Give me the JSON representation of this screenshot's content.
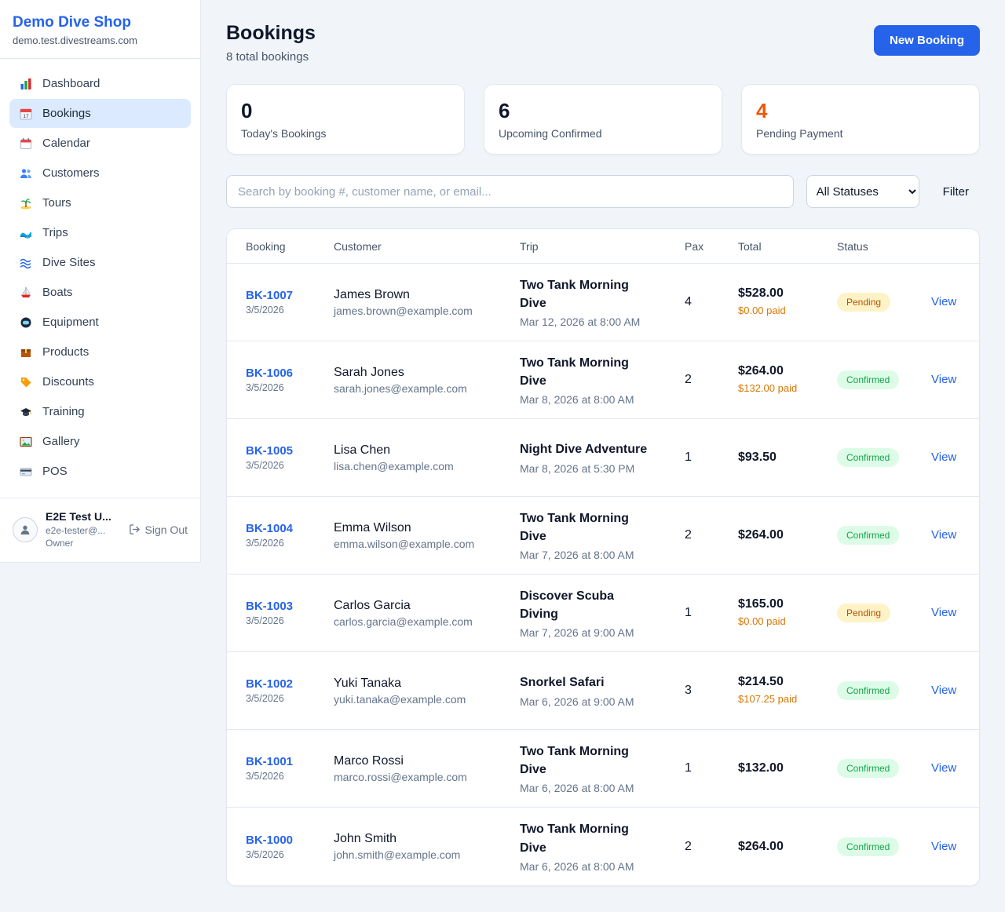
{
  "sidebar": {
    "shop_name": "Demo Dive Shop",
    "shop_domain": "demo.test.divestreams.com",
    "nav": [
      {
        "icon": "dashboard-icon",
        "label": "Dashboard",
        "active": false
      },
      {
        "icon": "bookings-icon",
        "label": "Bookings",
        "active": true
      },
      {
        "icon": "calendar-icon",
        "label": "Calendar",
        "active": false
      },
      {
        "icon": "customers-icon",
        "label": "Customers",
        "active": false
      },
      {
        "icon": "tours-icon",
        "label": "Tours",
        "active": false
      },
      {
        "icon": "trips-icon",
        "label": "Trips",
        "active": false
      },
      {
        "icon": "dive-sites-icon",
        "label": "Dive Sites",
        "active": false
      },
      {
        "icon": "boats-icon",
        "label": "Boats",
        "active": false
      },
      {
        "icon": "equipment-icon",
        "label": "Equipment",
        "active": false
      },
      {
        "icon": "products-icon",
        "label": "Products",
        "active": false
      },
      {
        "icon": "discounts-icon",
        "label": "Discounts",
        "active": false
      },
      {
        "icon": "training-icon",
        "label": "Training",
        "active": false
      },
      {
        "icon": "gallery-icon",
        "label": "Gallery",
        "active": false
      },
      {
        "icon": "pos-icon",
        "label": "POS",
        "active": false
      }
    ],
    "user": {
      "name": "E2E Test U...",
      "email": "e2e-tester@...",
      "role": "Owner",
      "sign_out_label": "Sign Out"
    }
  },
  "header": {
    "title": "Bookings",
    "subtitle": "8 total bookings",
    "new_booking_label": "New Booking"
  },
  "stats": [
    {
      "value": "0",
      "label": "Today's Bookings",
      "value_color": "#0f172a"
    },
    {
      "value": "6",
      "label": "Upcoming Confirmed",
      "value_color": "#0f172a"
    },
    {
      "value": "4",
      "label": "Pending Payment",
      "value_color": "#ea580c"
    }
  ],
  "filters": {
    "search_placeholder": "Search by booking #, customer name, or email...",
    "status_selected": "All Statuses",
    "filter_label": "Filter"
  },
  "accent_colors": {
    "primary_blue": "#2563eb",
    "pending_orange": "#ea580c",
    "confirmed_green": "#16a34a"
  },
  "table": {
    "columns": [
      "Booking",
      "Customer",
      "Trip",
      "Pax",
      "Total",
      "Status",
      ""
    ],
    "status_colors": {
      "Pending": {
        "bg": "#fef3c7",
        "text": "#b45309"
      },
      "Confirmed": {
        "bg": "#dcfce7",
        "text": "#16a34a"
      }
    },
    "rows": [
      {
        "booking_id": "BK-1007",
        "booking_date": "3/5/2026",
        "customer_name": "James Brown",
        "customer_email": "james.brown@example.com",
        "trip_name": "Two Tank Morning Dive",
        "trip_date": "Mar 12, 2026 at 8:00 AM",
        "pax": "4",
        "total": "$528.00",
        "paid": "$0.00 paid",
        "status": "Pending",
        "view_label": "View"
      },
      {
        "booking_id": "BK-1006",
        "booking_date": "3/5/2026",
        "customer_name": "Sarah Jones",
        "customer_email": "sarah.jones@example.com",
        "trip_name": "Two Tank Morning Dive",
        "trip_date": "Mar 8, 2026 at 8:00 AM",
        "pax": "2",
        "total": "$264.00",
        "paid": "$132.00 paid",
        "status": "Confirmed",
        "view_label": "View"
      },
      {
        "booking_id": "BK-1005",
        "booking_date": "3/5/2026",
        "customer_name": "Lisa Chen",
        "customer_email": "lisa.chen@example.com",
        "trip_name": "Night Dive Adventure",
        "trip_date": "Mar 8, 2026 at 5:30 PM",
        "pax": "1",
        "total": "$93.50",
        "paid": null,
        "status": "Confirmed",
        "view_label": "View"
      },
      {
        "booking_id": "BK-1004",
        "booking_date": "3/5/2026",
        "customer_name": "Emma Wilson",
        "customer_email": "emma.wilson@example.com",
        "trip_name": "Two Tank Morning Dive",
        "trip_date": "Mar 7, 2026 at 8:00 AM",
        "pax": "2",
        "total": "$264.00",
        "paid": null,
        "status": "Confirmed",
        "view_label": "View"
      },
      {
        "booking_id": "BK-1003",
        "booking_date": "3/5/2026",
        "customer_name": "Carlos Garcia",
        "customer_email": "carlos.garcia@example.com",
        "trip_name": "Discover Scuba Diving",
        "trip_date": "Mar 7, 2026 at 9:00 AM",
        "pax": "1",
        "total": "$165.00",
        "paid": "$0.00 paid",
        "status": "Pending",
        "view_label": "View"
      },
      {
        "booking_id": "BK-1002",
        "booking_date": "3/5/2026",
        "customer_name": "Yuki Tanaka",
        "customer_email": "yuki.tanaka@example.com",
        "trip_name": "Snorkel Safari",
        "trip_date": "Mar 6, 2026 at 9:00 AM",
        "pax": "3",
        "total": "$214.50",
        "paid": "$107.25 paid",
        "status": "Confirmed",
        "view_label": "View"
      },
      {
        "booking_id": "BK-1001",
        "booking_date": "3/5/2026",
        "customer_name": "Marco Rossi",
        "customer_email": "marco.rossi@example.com",
        "trip_name": "Two Tank Morning Dive",
        "trip_date": "Mar 6, 2026 at 8:00 AM",
        "pax": "1",
        "total": "$132.00",
        "paid": null,
        "status": "Confirmed",
        "view_label": "View"
      },
      {
        "booking_id": "BK-1000",
        "booking_date": "3/5/2026",
        "customer_name": "John Smith",
        "customer_email": "john.smith@example.com",
        "trip_name": "Two Tank Morning Dive",
        "trip_date": "Mar 6, 2026 at 8:00 AM",
        "pax": "2",
        "total": "$264.00",
        "paid": null,
        "status": "Confirmed",
        "view_label": "View"
      }
    ]
  }
}
